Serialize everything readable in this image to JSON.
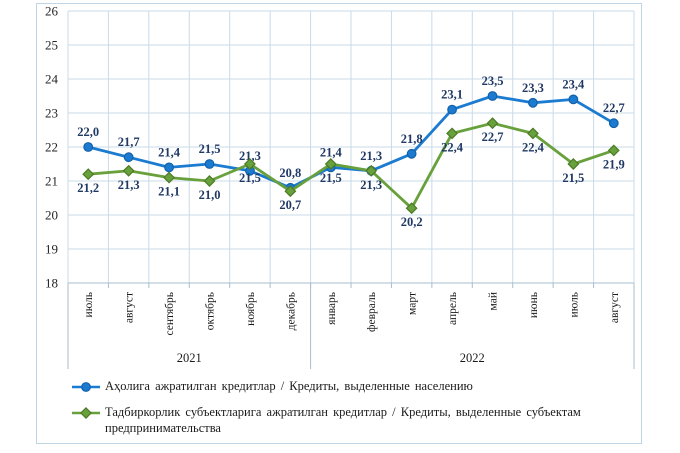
{
  "chart_data": {
    "type": "line",
    "title": "",
    "xlabel": "",
    "ylabel": "",
    "categories": [
      "июль",
      "август",
      "сентябрь",
      "октябрь",
      "ноябрь",
      "декабрь",
      "январь",
      "февраль",
      "март",
      "апрель",
      "май",
      "июнь",
      "июль",
      "август"
    ],
    "year_groups": [
      {
        "label": "2021",
        "span": 6
      },
      {
        "label": "2022",
        "span": 8
      }
    ],
    "ylim": [
      18,
      26
    ],
    "ytick_step": 1,
    "grid": true,
    "legend_position": "bottom",
    "decimal_separator": ",",
    "colors": {
      "grid": "#C9DBE9",
      "axis": "#A7BECF",
      "frame_border": "#BFD5E3",
      "label": "#1F3864"
    },
    "series": [
      {
        "name": "Аҳолига ажратилган кредитлар / Кредиты, выделенные населению",
        "marker": "circle",
        "color": "#1B7BD0",
        "marker_stroke": "#1460A8",
        "label_side": "above",
        "values": [
          22.0,
          21.7,
          21.4,
          21.5,
          21.3,
          20.8,
          21.4,
          21.3,
          21.8,
          23.1,
          23.5,
          23.3,
          23.4,
          22.7
        ]
      },
      {
        "name": "Тадбиркорлик субъектларига ажратилган кредитлар / Кредиты, выделенные субъектам предпринимательства",
        "marker": "diamond",
        "color": "#68A03C",
        "marker_stroke": "#4C7A26",
        "label_side": "below",
        "values": [
          21.2,
          21.3,
          21.1,
          21.0,
          21.5,
          20.7,
          21.5,
          21.3,
          20.2,
          22.4,
          22.7,
          22.4,
          21.5,
          21.9
        ]
      }
    ]
  }
}
